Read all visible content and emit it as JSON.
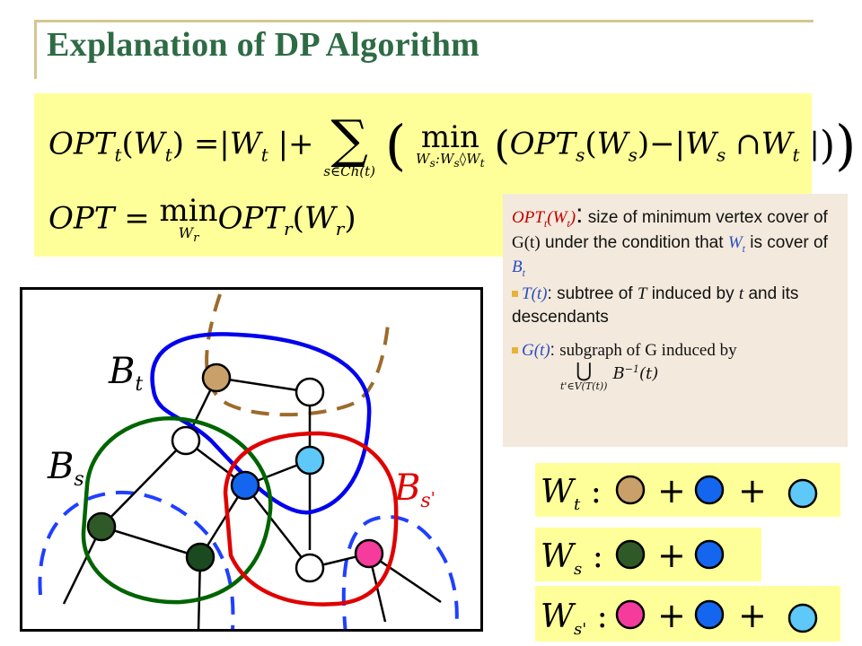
{
  "title": "Explanation of DP Algorithm",
  "formula": {
    "line1": "OPT_t(W_t) = |W_t| + Σ_{s∈Ch(t)} ( min_{W_s:W_s◊W_t} ( OPT_s(W_s) − |W_s ∩ W_t| ) )",
    "line2": "OPT = min_{W_r} OPT_r(W_r)"
  },
  "notes": {
    "opt_def_label": "OPTt(Wt)",
    "opt_def_text_1": "size of minimum vertex cover of",
    "opt_def_gt": "G(t)",
    "opt_def_text_2": "under the condition that",
    "opt_def_wt": "Wt",
    "opt_def_text_3": "is cover of",
    "opt_def_bt": "Bt",
    "tt_label": "T(t)",
    "tt_text_1": "subtree of",
    "tt_T": "T",
    "tt_text_2": "induced by",
    "tt_t": "t",
    "tt_text_3": "and its descendants",
    "gt_label": "G(t)",
    "gt_text": "subgraph of G induced by",
    "gt_union": "⋃ B⁻¹(t)",
    "gt_union_sub": "t'∈V(T(t))"
  },
  "graph": {
    "label_bt": "Bt",
    "label_bs": "Bs",
    "label_bsp": "Bs'",
    "colors": {
      "blue_bag": "#0000ee",
      "green_bag": "#006400",
      "red_bag": "#e00000",
      "brown_dash": "#9c6b2c",
      "blue_dash": "#1f3fff",
      "tan_node": "#c9a06a",
      "dark_green_node": "#2f5a28",
      "darker_green_node": "#1b4a20",
      "blue_node": "#1466ee",
      "light_blue_node": "#5ec8f8",
      "pink_node": "#f53c9c",
      "white_node": "#ffffff"
    }
  },
  "legend": {
    "wt_label": "Wt :",
    "ws_label": "Ws :",
    "wsp_label": "Ws' :",
    "plus": "+"
  }
}
